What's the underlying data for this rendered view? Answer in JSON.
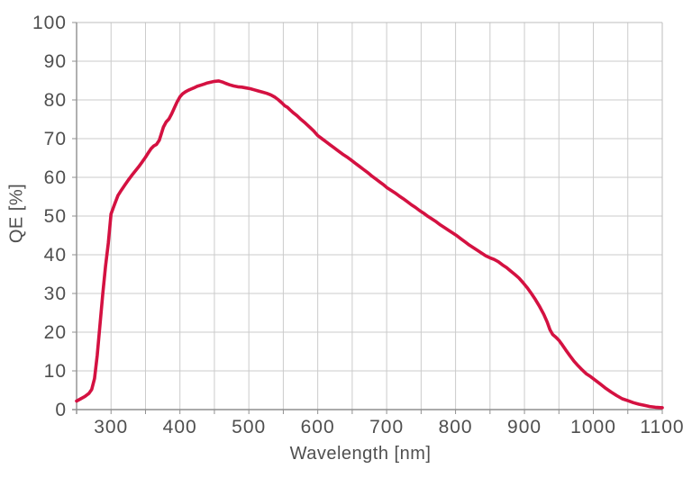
{
  "page": {
    "background": "#ffffff"
  },
  "chart_data": {
    "type": "line",
    "title": "",
    "xlabel": "Wavelength [nm]",
    "ylabel": "QE [%]",
    "grid": true,
    "legend": "none",
    "x_axis": {
      "min": 250,
      "max": 1100,
      "grid_step": 50,
      "tick_labels": [
        "300",
        "400",
        "500",
        "600",
        "700",
        "800",
        "900",
        "1000",
        "1100"
      ]
    },
    "y_axis": {
      "min": 0,
      "max": 100,
      "grid_step": 10,
      "tick_labels": [
        "0",
        "10",
        "20",
        "30",
        "40",
        "50",
        "60",
        "70",
        "80",
        "90",
        "100"
      ]
    },
    "colors": {
      "series": "#d41141",
      "grid": "#cbcbcb",
      "frame": "#bdbdbd",
      "axis": "#8f8f8f",
      "text": "#4f4f4f"
    },
    "series": [
      {
        "name": "QE",
        "color": "#d41141",
        "points": [
          [
            250,
            2.2
          ],
          [
            256,
            2.8
          ],
          [
            262,
            3.4
          ],
          [
            268,
            4.2
          ],
          [
            272,
            5.2
          ],
          [
            276,
            8.0
          ],
          [
            280,
            14.0
          ],
          [
            284,
            22.0
          ],
          [
            288,
            30.0
          ],
          [
            292,
            37.0
          ],
          [
            296,
            43.0
          ],
          [
            300,
            50.5
          ],
          [
            305,
            53.0
          ],
          [
            310,
            55.3
          ],
          [
            315,
            56.7
          ],
          [
            320,
            58.0
          ],
          [
            325,
            59.3
          ],
          [
            330,
            60.5
          ],
          [
            335,
            61.6
          ],
          [
            340,
            62.7
          ],
          [
            345,
            63.9
          ],
          [
            350,
            65.2
          ],
          [
            354,
            66.3
          ],
          [
            358,
            67.4
          ],
          [
            362,
            68.1
          ],
          [
            366,
            68.5
          ],
          [
            370,
            69.6
          ],
          [
            373,
            71.3
          ],
          [
            376,
            73.0
          ],
          [
            380,
            74.3
          ],
          [
            384,
            75.1
          ],
          [
            388,
            76.4
          ],
          [
            392,
            78.0
          ],
          [
            396,
            79.5
          ],
          [
            400,
            80.8
          ],
          [
            404,
            81.6
          ],
          [
            408,
            82.1
          ],
          [
            412,
            82.5
          ],
          [
            416,
            82.8
          ],
          [
            420,
            83.1
          ],
          [
            425,
            83.5
          ],
          [
            430,
            83.8
          ],
          [
            435,
            84.1
          ],
          [
            440,
            84.4
          ],
          [
            445,
            84.6
          ],
          [
            450,
            84.8
          ],
          [
            456,
            84.9
          ],
          [
            462,
            84.6
          ],
          [
            466,
            84.3
          ],
          [
            472,
            83.9
          ],
          [
            478,
            83.6
          ],
          [
            484,
            83.4
          ],
          [
            490,
            83.3
          ],
          [
            496,
            83.1
          ],
          [
            502,
            82.9
          ],
          [
            508,
            82.6
          ],
          [
            514,
            82.3
          ],
          [
            520,
            82.0
          ],
          [
            526,
            81.7
          ],
          [
            532,
            81.3
          ],
          [
            538,
            80.7
          ],
          [
            543,
            80.0
          ],
          [
            548,
            79.2
          ],
          [
            552,
            78.5
          ],
          [
            556,
            78.1
          ],
          [
            560,
            77.4
          ],
          [
            565,
            76.6
          ],
          [
            570,
            75.9
          ],
          [
            576,
            74.9
          ],
          [
            582,
            74.0
          ],
          [
            588,
            73.0
          ],
          [
            594,
            72.0
          ],
          [
            600,
            70.8
          ],
          [
            606,
            70.0
          ],
          [
            612,
            69.2
          ],
          [
            618,
            68.4
          ],
          [
            624,
            67.6
          ],
          [
            630,
            66.8
          ],
          [
            636,
            66.0
          ],
          [
            642,
            65.3
          ],
          [
            648,
            64.5
          ],
          [
            654,
            63.7
          ],
          [
            660,
            62.9
          ],
          [
            666,
            62.1
          ],
          [
            672,
            61.3
          ],
          [
            678,
            60.4
          ],
          [
            684,
            59.6
          ],
          [
            690,
            58.8
          ],
          [
            696,
            58.0
          ],
          [
            700,
            57.4
          ],
          [
            706,
            56.7
          ],
          [
            712,
            56.0
          ],
          [
            718,
            55.2
          ],
          [
            724,
            54.5
          ],
          [
            730,
            53.7
          ],
          [
            736,
            52.9
          ],
          [
            742,
            52.2
          ],
          [
            748,
            51.4
          ],
          [
            754,
            50.7
          ],
          [
            760,
            49.9
          ],
          [
            766,
            49.2
          ],
          [
            772,
            48.5
          ],
          [
            778,
            47.7
          ],
          [
            784,
            47.0
          ],
          [
            790,
            46.3
          ],
          [
            796,
            45.6
          ],
          [
            802,
            44.9
          ],
          [
            808,
            44.1
          ],
          [
            814,
            43.3
          ],
          [
            820,
            42.5
          ],
          [
            826,
            41.8
          ],
          [
            832,
            41.1
          ],
          [
            838,
            40.4
          ],
          [
            844,
            39.7
          ],
          [
            850,
            39.2
          ],
          [
            856,
            38.8
          ],
          [
            862,
            38.2
          ],
          [
            868,
            37.4
          ],
          [
            874,
            36.7
          ],
          [
            880,
            35.8
          ],
          [
            886,
            34.9
          ],
          [
            892,
            34.0
          ],
          [
            898,
            32.8
          ],
          [
            904,
            31.5
          ],
          [
            910,
            30.0
          ],
          [
            916,
            28.4
          ],
          [
            922,
            26.6
          ],
          [
            928,
            24.6
          ],
          [
            933,
            22.6
          ],
          [
            937,
            20.6
          ],
          [
            941,
            19.4
          ],
          [
            945,
            18.8
          ],
          [
            950,
            17.9
          ],
          [
            955,
            16.7
          ],
          [
            960,
            15.4
          ],
          [
            966,
            13.9
          ],
          [
            972,
            12.5
          ],
          [
            978,
            11.3
          ],
          [
            984,
            10.2
          ],
          [
            990,
            9.2
          ],
          [
            996,
            8.5
          ],
          [
            1002,
            7.7
          ],
          [
            1010,
            6.6
          ],
          [
            1018,
            5.5
          ],
          [
            1026,
            4.5
          ],
          [
            1034,
            3.6
          ],
          [
            1042,
            2.8
          ],
          [
            1050,
            2.3
          ],
          [
            1058,
            1.8
          ],
          [
            1066,
            1.4
          ],
          [
            1074,
            1.1
          ],
          [
            1082,
            0.8
          ],
          [
            1090,
            0.6
          ],
          [
            1100,
            0.5
          ]
        ]
      }
    ]
  }
}
